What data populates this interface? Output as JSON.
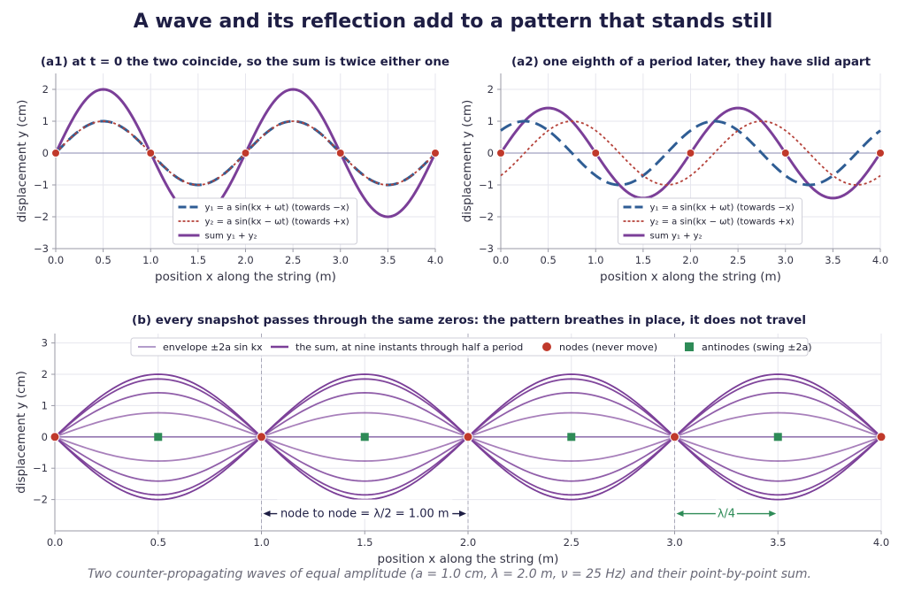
{
  "page": {
    "title": "A wave and its reflection add to a pattern that stands still",
    "caption": "Two counter-propagating waves of equal amplitude (a = 1.0 cm, λ = 2.0 m, ν = 25 Hz) and their point-by-point sum."
  },
  "colors": {
    "y1": "#2f5d94",
    "y2": "#b5423a",
    "sum": "#7b3f98",
    "envelope": "#b39ccb",
    "node": "#c0392b",
    "antinode": "#2e8b57",
    "axis_text": "#333344",
    "title_text": "#1e1e44"
  },
  "chart_data": [
    {
      "id": "a1",
      "type": "line",
      "title": "(a1)  at t = 0 the two coincide, so the sum is twice either one",
      "xlabel": "position x along the string (m)",
      "ylabel": "displacement y (cm)",
      "xlim": [
        0,
        4
      ],
      "ylim": [
        -3,
        2.5
      ],
      "xticks": [
        "0.0",
        "0.5",
        "1.0",
        "1.5",
        "2.0",
        "2.5",
        "3.0",
        "3.5",
        "4.0"
      ],
      "yticks": [
        "−3",
        "−2",
        "−1",
        "0",
        "1",
        "2"
      ],
      "grid": true,
      "legend_position": "lower-center",
      "phase_wt": 0,
      "amplitude_cm": 1.0,
      "wavelength_m": 2.0,
      "series": [
        {
          "name": "y₁ = a sin(kx + ωt)  (towards −x)",
          "style": "dashed",
          "x": [
            0,
            0.5,
            1.0,
            1.5,
            2.0,
            2.5,
            3.0,
            3.5,
            4.0
          ],
          "y": [
            0,
            1,
            0,
            -1,
            0,
            1,
            0,
            -1,
            0
          ]
        },
        {
          "name": "y₂ = a sin(kx − ωt)  (towards +x)",
          "style": "dotted",
          "x": [
            0,
            0.5,
            1.0,
            1.5,
            2.0,
            2.5,
            3.0,
            3.5,
            4.0
          ],
          "y": [
            0,
            1,
            0,
            -1,
            0,
            1,
            0,
            -1,
            0
          ]
        },
        {
          "name": "sum y₁ + y₂",
          "style": "solid",
          "x": [
            0,
            0.5,
            1.0,
            1.5,
            2.0,
            2.5,
            3.0,
            3.5,
            4.0
          ],
          "y": [
            0,
            2,
            0,
            -2,
            0,
            2,
            0,
            -2,
            0
          ]
        }
      ],
      "nodes_x": [
        0,
        1,
        2,
        3,
        4
      ]
    },
    {
      "id": "a2",
      "type": "line",
      "title": "(a2)  one eighth of a period later, they have slid apart",
      "xlabel": "position x along the string (m)",
      "ylabel": "displacement y (cm)",
      "xlim": [
        0,
        4
      ],
      "ylim": [
        -3,
        2.5
      ],
      "xticks": [
        "0.0",
        "0.5",
        "1.0",
        "1.5",
        "2.0",
        "2.5",
        "3.0",
        "3.5",
        "4.0"
      ],
      "yticks": [
        "−3",
        "−2",
        "−1",
        "0",
        "1",
        "2"
      ],
      "grid": true,
      "legend_position": "lower-center",
      "phase_wt": 0.7854,
      "amplitude_cm": 1.0,
      "wavelength_m": 2.0,
      "series": [
        {
          "name": "y₁ = a sin(kx + ωt)  (towards −x)",
          "style": "dashed",
          "x": [
            0,
            0.25,
            0.5,
            1.0,
            1.25,
            1.5,
            2.0,
            2.25,
            2.5,
            3.0,
            3.25,
            3.5,
            4.0
          ],
          "y": [
            0.71,
            1,
            0.71,
            -0.71,
            -1,
            -0.71,
            0.71,
            1,
            0.71,
            -0.71,
            -1,
            -0.71,
            0.71
          ]
        },
        {
          "name": "y₂ = a sin(kx − ωt)  (towards +x)",
          "style": "dotted",
          "x": [
            0,
            0.25,
            0.75,
            1.0,
            1.25,
            1.75,
            2.0,
            2.25,
            2.75,
            3.0,
            3.25,
            3.75,
            4.0
          ],
          "y": [
            -0.71,
            0,
            1,
            0.71,
            0,
            -1,
            -0.71,
            0,
            1,
            0.71,
            0,
            -1,
            -0.71
          ]
        },
        {
          "name": "sum y₁ + y₂",
          "style": "solid",
          "x": [
            0,
            0.5,
            1.0,
            1.5,
            2.0,
            2.5,
            3.0,
            3.5,
            4.0
          ],
          "y": [
            0,
            1.41,
            0,
            -1.41,
            0,
            1.41,
            0,
            -1.41,
            0
          ]
        }
      ],
      "nodes_x": [
        0,
        1,
        2,
        3,
        4
      ]
    },
    {
      "id": "b",
      "type": "line",
      "title": "(b)  every snapshot passes through the same zeros: the pattern breathes in place, it does not travel",
      "xlabel": "position x along the string (m)",
      "ylabel": "displacement y (cm)",
      "xlim": [
        0,
        4
      ],
      "ylim": [
        -3,
        3.3
      ],
      "xticks": [
        "0.0",
        "0.5",
        "1.0",
        "1.5",
        "2.0",
        "2.5",
        "3.0",
        "3.5",
        "4.0"
      ],
      "yticks": [
        "−2",
        "−1",
        "0",
        "1",
        "2",
        "3"
      ],
      "grid": true,
      "legend_position": "top",
      "legend": [
        {
          "label": "envelope  ±2a sin kx",
          "kind": "envelope"
        },
        {
          "label": "the sum, at nine instants through half a period",
          "kind": "sum"
        },
        {
          "label": "nodes (never move)",
          "kind": "node"
        },
        {
          "label": "antinodes (swing ±2a)",
          "kind": "antinode"
        }
      ],
      "snapshot_amplitudes_cm": [
        2.0,
        1.85,
        1.41,
        0.77,
        0,
        -0.77,
        -1.41,
        -1.85,
        -2.0
      ],
      "nodes_x": [
        0,
        1,
        2,
        3,
        4
      ],
      "antinodes_x": [
        0.5,
        1.5,
        2.5,
        3.5
      ],
      "node_guides_x": [
        1,
        2,
        3
      ],
      "annotations": [
        {
          "text": "node to node = λ/2 = 1.00 m",
          "x_from": 1.0,
          "x_to": 2.0,
          "y": -2.45,
          "color": "dark"
        },
        {
          "text": "λ/4",
          "x_from": 3.0,
          "x_to": 3.5,
          "y": -2.45,
          "color": "green"
        }
      ]
    }
  ]
}
